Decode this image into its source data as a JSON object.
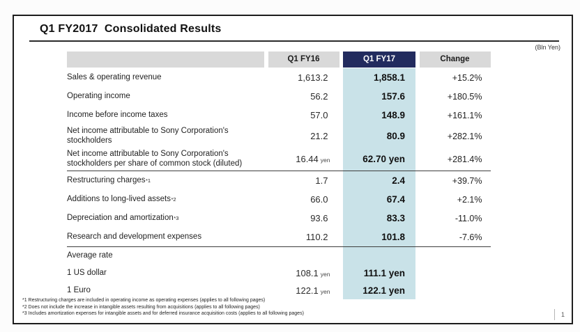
{
  "slide": {
    "title": "Q1 FY2017  Consolidated Results",
    "unit_note": "(Bln Yen)",
    "page_number": "1"
  },
  "colors": {
    "accent_navy": "#222B5E",
    "highlight_blue": "#C9E2E8",
    "header_gray": "#D9D9D9"
  },
  "table": {
    "columns": [
      "",
      "Q1 FY16",
      "Q1 FY17",
      "Change"
    ],
    "rows": [
      {
        "label": "Sales & operating revenue",
        "fy16": "1,613.2",
        "fy17": "1,858.1",
        "change": "+15.2%"
      },
      {
        "label": "Operating income",
        "fy16": "56.2",
        "fy17": "157.6",
        "change": "+180.5%"
      },
      {
        "label": "Income before income taxes",
        "fy16": "57.0",
        "fy17": "148.9",
        "change": "+161.1%"
      },
      {
        "label": "Net income attributable to Sony Corporation's stockholders",
        "tall": true,
        "fy16": "21.2",
        "fy17": "80.9",
        "change": "+282.1%"
      },
      {
        "label": "Net income attributable to Sony Corporation's stockholders per share of common stock (diluted)",
        "tall": true,
        "fy16": "16.44",
        "fy16_unit": "yen",
        "fy17": "62.70 yen",
        "change": "+281.4%"
      },
      {
        "label": "Restructuring charges",
        "sup": "*1",
        "rule": true,
        "fy16": "1.7",
        "fy17": "2.4",
        "change": "+39.7%"
      },
      {
        "label": "Additions to long-lived assets",
        "sup": "*2",
        "fy16": "66.0",
        "fy17": "67.4",
        "change": "+2.1%"
      },
      {
        "label": "Depreciation and amortization",
        "sup": "*3",
        "fy16": "93.6",
        "fy17": "83.3",
        "change": "-11.0%"
      },
      {
        "label": "Research and development expenses",
        "fy16": "110.2",
        "fy17": "101.8",
        "change": "-7.6%"
      },
      {
        "label": "Average rate",
        "rule": true,
        "rates": true,
        "fy16": "",
        "fy17": "",
        "change": ""
      },
      {
        "label": "1 US dollar",
        "rates": true,
        "fy16": "108.1",
        "fy16_unit": "yen",
        "fy17": "111.1 yen",
        "change": ""
      },
      {
        "label": "1 Euro",
        "rates": true,
        "fy16": "122.1",
        "fy16_unit": "yen",
        "fy17": "122.1 yen",
        "change": ""
      }
    ]
  },
  "footnotes": [
    "*1 Restructuring charges are included in operating income as operating expenses (applies to all following pages)",
    "*2 Does not include the increase in intangible assets resulting from acquisitions (applies to all following pages)",
    "*3 Includes amortization expenses for intangible assets and for deferred insurance acquisition costs (applies to all following pages)"
  ]
}
